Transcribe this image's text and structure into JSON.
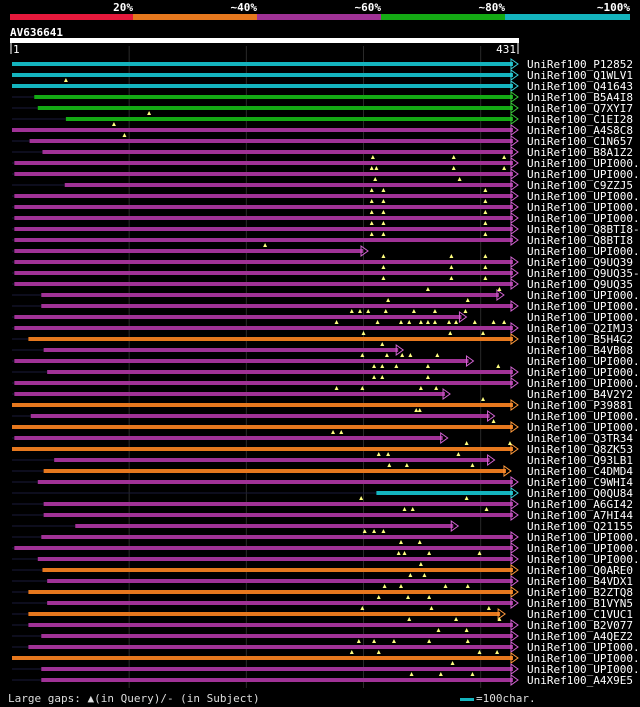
{
  "legend": {
    "labels": [
      "20%",
      "~40%",
      "~60%",
      "~80%",
      "~100%"
    ],
    "colors": [
      "#e6193c",
      "#e6781e",
      "#a03296",
      "#14aa14",
      "#14b4be"
    ]
  },
  "query": {
    "id": "AV636641",
    "start": "1",
    "end": "431",
    "length": 431
  },
  "footer": {
    "gap_note": "Large gaps: ▲(in Query)/- (in Subject)",
    "scale_note": "=100char."
  },
  "hits": [
    {
      "label": "UniRef100_P12852",
      "color": "cyan",
      "start": 0,
      "end": 431,
      "marks": []
    },
    {
      "label": "UniRef100_Q1WLV1",
      "color": "cyan",
      "start": 0,
      "end": 431,
      "marks": []
    },
    {
      "label": "UniRef100_Q41643",
      "color": "cyan",
      "start": 0,
      "end": 431,
      "marks": [
        46
      ]
    },
    {
      "label": "UniRef100_B5A4I8",
      "color": "green",
      "start": 19,
      "end": 431,
      "marks": []
    },
    {
      "label": "UniRef100_Q7XYI7",
      "color": "green",
      "start": 22,
      "end": 431,
      "marks": []
    },
    {
      "label": "UniRef100_C1EI28",
      "color": "green",
      "start": 46,
      "end": 431,
      "marks": [
        117
      ]
    },
    {
      "label": "UniRef100_A4S8C8",
      "color": "purple",
      "start": 0,
      "end": 431,
      "marks": [
        87
      ]
    },
    {
      "label": "UniRef100_C1N657",
      "color": "purple",
      "start": 15,
      "end": 431,
      "marks": [
        96
      ]
    },
    {
      "label": "UniRef100_B8A1Z2",
      "color": "purple",
      "start": 26,
      "end": 431,
      "marks": []
    },
    {
      "label": "UniRef100_UPI000..",
      "color": "purple",
      "start": 2,
      "end": 431,
      "marks": [
        308,
        377,
        420
      ]
    },
    {
      "label": "UniRef100_UPI000..",
      "color": "purple",
      "start": 2,
      "end": 431,
      "marks": [
        307,
        311,
        377,
        420
      ]
    },
    {
      "label": "UniRef100_C9ZZJ5",
      "color": "purple",
      "start": 45,
      "end": 431,
      "marks": [
        310,
        382
      ]
    },
    {
      "label": "UniRef100_UPI000..",
      "color": "purple",
      "start": 2,
      "end": 431,
      "marks": [
        307,
        317,
        404
      ]
    },
    {
      "label": "UniRef100_UPI000..",
      "color": "purple",
      "start": 2,
      "end": 431,
      "marks": [
        307,
        317,
        404
      ]
    },
    {
      "label": "UniRef100_UPI000..",
      "color": "purple",
      "start": 2,
      "end": 431,
      "marks": [
        307,
        317,
        404
      ]
    },
    {
      "label": "UniRef100_Q8BTI8-3",
      "color": "purple",
      "start": 2,
      "end": 431,
      "marks": [
        307,
        317,
        404
      ]
    },
    {
      "label": "UniRef100_Q8BTI8",
      "color": "purple",
      "start": 2,
      "end": 431,
      "marks": [
        307,
        317,
        404
      ]
    },
    {
      "label": "UniRef100_UPI000..",
      "color": "purple",
      "start": 2,
      "end": 303,
      "marks": [
        216
      ]
    },
    {
      "label": "UniRef100_Q9UQ39",
      "color": "purple",
      "start": 2,
      "end": 431,
      "marks": [
        317,
        375,
        404
      ]
    },
    {
      "label": "UniRef100_Q9UQ35-2",
      "color": "purple",
      "start": 2,
      "end": 431,
      "marks": [
        317,
        375,
        404
      ]
    },
    {
      "label": "UniRef100_Q9UQ35",
      "color": "purple",
      "start": 2,
      "end": 431,
      "marks": [
        317,
        375,
        404
      ]
    },
    {
      "label": "UniRef100_UPI000..",
      "color": "purple",
      "start": 25,
      "end": 419,
      "marks": [
        355,
        416
      ]
    },
    {
      "label": "UniRef100_UPI000..",
      "color": "purple",
      "start": 25,
      "end": 431,
      "marks": [
        321,
        389
      ]
    },
    {
      "label": "UniRef100_UPI000..",
      "color": "purple",
      "start": 2,
      "end": 387,
      "marks": [
        290,
        297,
        304,
        319,
        343,
        361,
        387
      ]
    },
    {
      "label": "UniRef100_Q2IMJ3",
      "color": "purple",
      "start": 2,
      "end": 431,
      "marks": [
        277,
        312,
        332,
        339,
        349,
        355,
        361,
        373,
        379,
        395,
        411,
        420
      ]
    },
    {
      "label": "UniRef100_B5H4G2",
      "color": "orange",
      "start": 14,
      "end": 431,
      "marks": [
        300,
        374,
        402
      ]
    },
    {
      "label": "UniRef100_B4VB08",
      "color": "purple",
      "start": 27,
      "end": 333,
      "marks": [
        316
      ]
    },
    {
      "label": "UniRef100_UPI000..",
      "color": "purple",
      "start": 2,
      "end": 393,
      "marks": [
        299,
        320,
        333,
        340,
        363
      ]
    },
    {
      "label": "UniRef100_UPI000..",
      "color": "purple",
      "start": 30,
      "end": 431,
      "marks": [
        309,
        316,
        328,
        355,
        415
      ]
    },
    {
      "label": "UniRef100_UPI000..",
      "color": "purple",
      "start": 2,
      "end": 431,
      "marks": [
        309,
        316,
        355
      ]
    },
    {
      "label": "UniRef100_B4V2Y2",
      "color": "purple",
      "start": 2,
      "end": 373,
      "marks": [
        277,
        299,
        349,
        362
      ]
    },
    {
      "label": "UniRef100_P39881",
      "color": "orange",
      "start": 0,
      "end": 431,
      "marks": [
        402
      ]
    },
    {
      "label": "UniRef100_UPI000..",
      "color": "purple",
      "start": 16,
      "end": 411,
      "marks": [
        345,
        348
      ]
    },
    {
      "label": "UniRef100_UPI000..",
      "color": "orange",
      "start": 0,
      "end": 431,
      "marks": [
        411
      ]
    },
    {
      "label": "UniRef100_Q3TR34",
      "color": "purple",
      "start": 2,
      "end": 371,
      "marks": [
        274,
        281
      ]
    },
    {
      "label": "UniRef100_Q8ZK53",
      "color": "orange",
      "start": 0,
      "end": 431,
      "marks": [
        388,
        425
      ]
    },
    {
      "label": "UniRef100_Q93LB1",
      "color": "purple",
      "start": 36,
      "end": 411,
      "marks": [
        313,
        321,
        381
      ]
    },
    {
      "label": "UniRef100_C4DMD4",
      "color": "orange",
      "start": 27,
      "end": 425,
      "marks": [
        322,
        337,
        393
      ]
    },
    {
      "label": "UniRef100_C9WHI4",
      "color": "purple",
      "start": 22,
      "end": 431,
      "marks": []
    },
    {
      "label": "UniRef100_Q0QU84",
      "color": "cyan",
      "start": 311,
      "end": 431,
      "marks": []
    },
    {
      "label": "UniRef100_A6GI42",
      "color": "purple",
      "start": 27,
      "end": 431,
      "marks": [
        298,
        388
      ]
    },
    {
      "label": "UniRef100_A7HI44",
      "color": "purple",
      "start": 27,
      "end": 431,
      "marks": [
        335,
        342,
        405
      ]
    },
    {
      "label": "UniRef100_Q21155",
      "color": "purple",
      "start": 54,
      "end": 380,
      "marks": []
    },
    {
      "label": "UniRef100_UPI000..",
      "color": "purple",
      "start": 25,
      "end": 431,
      "marks": [
        301,
        309,
        317
      ]
    },
    {
      "label": "UniRef100_UPI000..",
      "color": "purple",
      "start": 2,
      "end": 431,
      "marks": [
        332,
        348
      ]
    },
    {
      "label": "UniRef100_UPI000..",
      "color": "purple",
      "start": 22,
      "end": 431,
      "marks": [
        330,
        335,
        356,
        399
      ]
    },
    {
      "label": "UniRef100_Q0ARE0",
      "color": "orange",
      "start": 26,
      "end": 431,
      "marks": [
        349
      ]
    },
    {
      "label": "UniRef100_B4VDX1",
      "color": "purple",
      "start": 30,
      "end": 431,
      "marks": [
        340,
        352
      ]
    },
    {
      "label": "UniRef100_B2ZTQ8",
      "color": "orange",
      "start": 14,
      "end": 431,
      "marks": [
        318,
        332,
        370,
        389
      ]
    },
    {
      "label": "UniRef100_B1VYN5",
      "color": "purple",
      "start": 30,
      "end": 431,
      "marks": [
        313,
        338,
        356
      ]
    },
    {
      "label": "UniRef100_C1VUC1",
      "color": "orange",
      "start": 14,
      "end": 420,
      "marks": [
        299,
        358,
        407
      ]
    },
    {
      "label": "UniRef100_B2V077",
      "color": "purple",
      "start": 14,
      "end": 431,
      "marks": [
        339,
        379,
        416
      ]
    },
    {
      "label": "UniRef100_A4QEZ2",
      "color": "purple",
      "start": 25,
      "end": 431,
      "marks": [
        364,
        388
      ]
    },
    {
      "label": "UniRef100_UPI000..",
      "color": "purple",
      "start": 14,
      "end": 431,
      "marks": [
        296,
        309,
        326,
        356,
        389
      ]
    },
    {
      "label": "UniRef100_UPI000..",
      "color": "orange",
      "start": 0,
      "end": 431,
      "marks": [
        290,
        313,
        399,
        414
      ]
    },
    {
      "label": "UniRef100_UPI000..",
      "color": "purple",
      "start": 25,
      "end": 431,
      "marks": [
        376
      ]
    },
    {
      "label": "UniRef100_A4X9E5",
      "color": "purple",
      "start": 25,
      "end": 431,
      "marks": [
        341,
        366,
        393
      ]
    }
  ]
}
